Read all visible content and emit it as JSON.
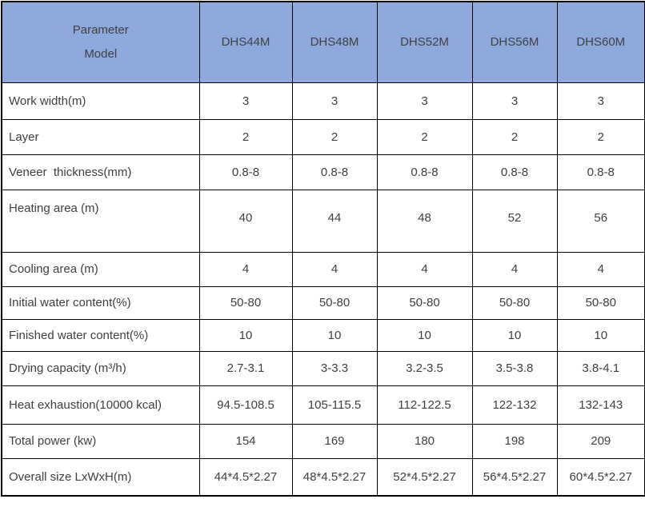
{
  "table": {
    "header": {
      "corner_line1": "Parameter",
      "corner_line2": "Model",
      "models": [
        "DHS44M",
        "DHS48M",
        "DHS52M",
        "DHS56M",
        "DHS60M"
      ]
    },
    "rows": [
      {
        "label": "Work width(m)",
        "values": [
          "3",
          "3",
          "3",
          "3",
          "3"
        ]
      },
      {
        "label": "Layer",
        "values": [
          "2",
          "2",
          "2",
          "2",
          "2"
        ]
      },
      {
        "label": "Veneer  thickness(mm)",
        "values": [
          "0.8-8",
          "0.8-8",
          "0.8-8",
          "0.8-8",
          "0.8-8"
        ]
      },
      {
        "label": "Heating area (m)",
        "values": [
          "40",
          "44",
          "48",
          "52",
          "56"
        ]
      },
      {
        "label": "Cooling area (m)",
        "values": [
          "4",
          "4",
          "4",
          "4",
          "4"
        ]
      },
      {
        "label": "Initial water content(%)",
        "values": [
          "50-80",
          "50-80",
          "50-80",
          "50-80",
          "50-80"
        ]
      },
      {
        "label": "Finished water content(%)",
        "values": [
          "10",
          "10",
          "10",
          "10",
          "10"
        ]
      },
      {
        "label": "Drying capacity (m³/h)",
        "values": [
          "2.7-3.1",
          "3-3.3",
          "3.2-3.5",
          "3.5-3.8",
          "3.8-4.1"
        ]
      },
      {
        "label": "Heat exhaustion(10000 kcal)",
        "values": [
          "94.5-108.5",
          "105-115.5",
          "112-122.5",
          "122-132",
          "132-143"
        ]
      },
      {
        "label": "Total power (kw)",
        "values": [
          "154",
          "169",
          "180",
          "198",
          "209"
        ]
      },
      {
        "label": "Overall size LxWxH(m)",
        "values": [
          "44*4.5*2.27",
          "48*4.5*2.27",
          "52*4.5*2.27",
          "56*4.5*2.27",
          "60*4.5*2.27"
        ]
      }
    ],
    "colors": {
      "header_bg": "#8EA9DB",
      "border": "#000000",
      "text": "#404040"
    }
  }
}
